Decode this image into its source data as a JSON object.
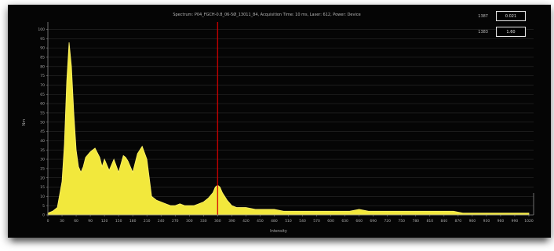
{
  "title": "Spectrum: P04_FGCH-0.8_06-5Ø_13011_84, Acquisition Time: 10 ms, Laser: 612, Power: Device",
  "readouts": [
    {
      "label": "1387",
      "value": "0.021"
    },
    {
      "label": "1383",
      "value": "1.60"
    }
  ],
  "colors": {
    "background": "#050505",
    "fill": "#f2e83c",
    "fill_stroke": "#fff36a",
    "marker": "#d40000",
    "grid": "#2a2a2a",
    "axis": "#8a8a8a",
    "tick_label": "#aaaaaa"
  },
  "chart_data": {
    "type": "area",
    "title": "Spectrum: P04_FGCH-0.8_06-5Ø_13011_84, Acquisition Time: 10 ms, Laser: 612, Power: Device",
    "xlabel": "Intensity",
    "ylabel": "Nm",
    "xlim": [
      0,
      1030
    ],
    "ylim": [
      0,
      104
    ],
    "x_ticks": [
      0,
      30,
      60,
      90,
      120,
      150,
      180,
      210,
      240,
      270,
      300,
      330,
      360,
      390,
      420,
      450,
      480,
      510,
      540,
      570,
      600,
      630,
      660,
      690,
      720,
      750,
      780,
      810,
      840,
      870,
      900,
      930,
      960,
      990,
      1020
    ],
    "y_ticks": [
      0,
      5,
      10,
      15,
      20,
      25,
      30,
      35,
      40,
      45,
      50,
      55,
      60,
      65,
      70,
      75,
      80,
      85,
      90,
      95,
      100
    ],
    "marker_x": 360,
    "grid": true,
    "series": [
      {
        "x": [
          0,
          10,
          20,
          30,
          35,
          40,
          45,
          50,
          55,
          60,
          65,
          70,
          75,
          80,
          90,
          100,
          110,
          115,
          120,
          130,
          140,
          150,
          160,
          165,
          170,
          180,
          190,
          200,
          210,
          215,
          220,
          230,
          240,
          250,
          260,
          270,
          280,
          290,
          300,
          310,
          320,
          330,
          340,
          350,
          355,
          360,
          365,
          370,
          380,
          390,
          400,
          420,
          440,
          460,
          480,
          500,
          520,
          540,
          560,
          580,
          600,
          620,
          640,
          660,
          680,
          700,
          720,
          740,
          760,
          780,
          800,
          820,
          840,
          860,
          880,
          900,
          920,
          940,
          960,
          980,
          1000,
          1020
        ],
        "values": [
          1,
          2,
          4,
          18,
          38,
          72,
          93,
          80,
          55,
          35,
          26,
          23,
          26,
          31,
          34,
          36,
          31,
          26,
          30,
          24,
          30,
          23,
          32,
          31,
          29,
          23,
          33,
          37,
          30,
          20,
          10,
          8,
          7,
          6,
          5,
          5,
          6,
          5,
          5,
          5,
          6,
          7,
          9,
          12,
          15,
          16,
          15,
          12,
          8,
          5,
          4,
          4,
          3,
          3,
          3,
          2,
          2,
          2,
          2,
          2,
          2,
          2,
          2,
          3,
          2,
          2,
          2,
          2,
          2,
          2,
          2,
          2,
          2,
          2,
          1,
          1,
          1,
          1,
          1,
          1,
          1,
          1
        ]
      }
    ]
  }
}
